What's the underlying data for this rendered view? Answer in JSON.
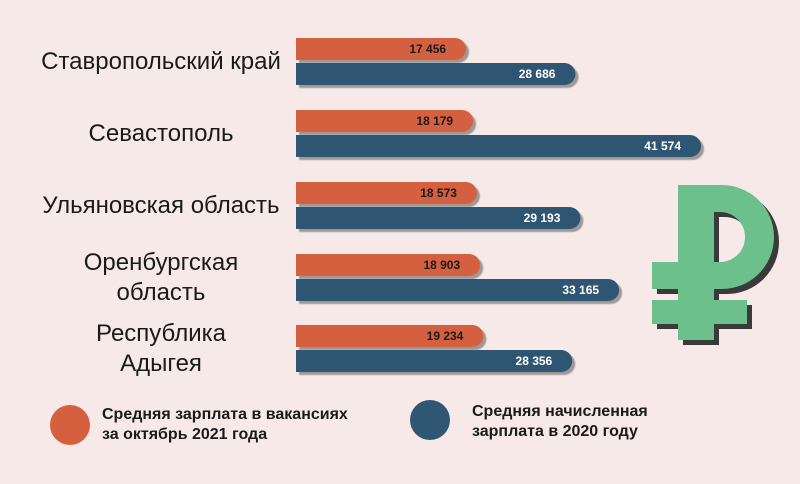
{
  "chart_data": {
    "type": "bar",
    "orientation": "horizontal",
    "categories": [
      "Ставропольский край",
      "Севастополь",
      "Ульяновская область",
      "Оренбургская\nобласть",
      "Республика\nАдыгея"
    ],
    "series": [
      {
        "name": "Средняя зарплата в вакансиях\n за октябрь 2021 года",
        "color": "#d4603f",
        "values": [
          17456,
          18179,
          18573,
          18903,
          19234
        ],
        "labels": [
          "17 456",
          "18 179",
          "18 573",
          "18 903",
          "19 234"
        ]
      },
      {
        "name": "Средняя начисленная\nзарплата в 2020 году",
        "color": "#2f5673",
        "values": [
          28686,
          41574,
          29193,
          33165,
          28356
        ],
        "labels": [
          "28 686",
          "41 574",
          "29 193",
          "33 165",
          "28 356"
        ]
      }
    ],
    "legend_position": "bottom",
    "grid": false
  },
  "decor": {
    "ruble_icon": "ruble-sign-icon",
    "ruble_color": "#6cc08c"
  }
}
